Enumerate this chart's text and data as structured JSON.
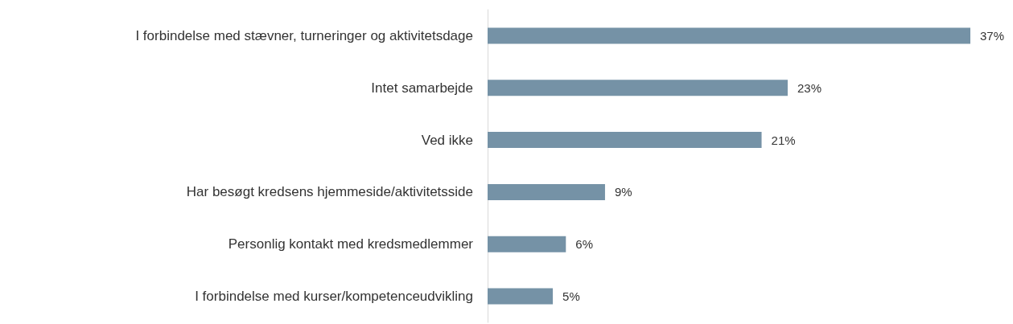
{
  "chart_data": {
    "type": "bar",
    "orientation": "horizontal",
    "categories": [
      "I forbindelse med stævner, turneringer og aktivitetsdage",
      "Intet samarbejde",
      "Ved ikke",
      "Har besøgt kredsens hjemmeside/aktivitetsside",
      "Personlig kontakt med kredsmedlemmer",
      "I forbindelse med kurser/kompetenceudvikling"
    ],
    "values": [
      37,
      23,
      21,
      9,
      6,
      5
    ],
    "value_labels": [
      "37%",
      "23%",
      "21%",
      "9%",
      "6%",
      "5%"
    ],
    "color": "#7592a6"
  }
}
